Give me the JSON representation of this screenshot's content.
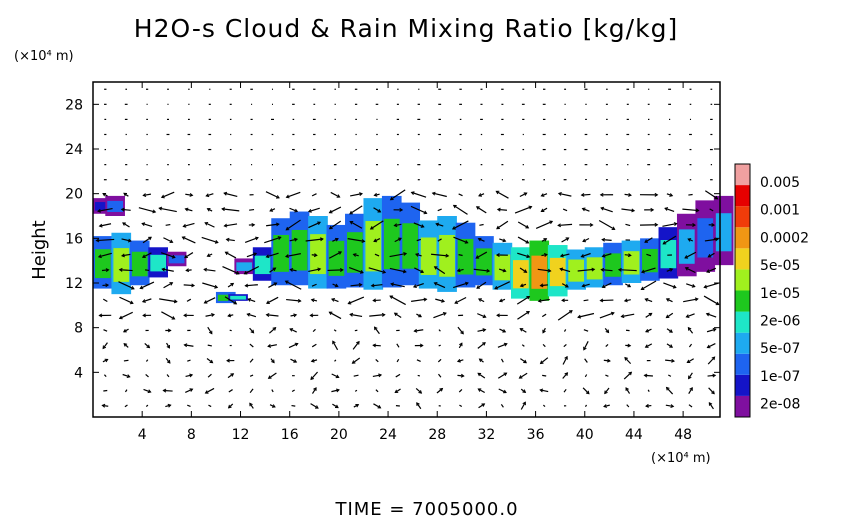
{
  "chart_data": {
    "type": "heatmap",
    "title": "H2O-s Cloud & Rain Mixing Ratio [kg/kg]",
    "ylabel": "Height",
    "y_unit": "(×10⁴ m)",
    "x_unit": "(×10⁴ m)",
    "xlim": [
      0,
      51
    ],
    "ylim": [
      0,
      30
    ],
    "x_ticks": [
      "4",
      "8",
      "12",
      "16",
      "20",
      "24",
      "28",
      "32",
      "36",
      "40",
      "44",
      "48"
    ],
    "y_ticks": [
      "4",
      "8",
      "12",
      "16",
      "20",
      "24",
      "28"
    ],
    "colorbar": {
      "scale": "log",
      "labels": [
        "0.005",
        "0.001",
        "0.0002",
        "5e-05",
        "1e-05",
        "2e-06",
        "5e-07",
        "1e-07",
        "2e-08"
      ],
      "colors": [
        "#7f0f9f",
        "#1414c8",
        "#1e64f0",
        "#1eaaf0",
        "#1ee6c8",
        "#1ec81e",
        "#a0f01e",
        "#f0d21e",
        "#f09614",
        "#f03c0a",
        "#e60000",
        "#f0a0a0"
      ]
    },
    "cloud_regions": [
      {
        "x": 0.0,
        "y_bottom": 18.2,
        "y_top": 19.6,
        "level": 1
      },
      {
        "x": 1.0,
        "y_bottom": 18.0,
        "y_top": 19.8,
        "level": 2
      },
      {
        "x": 0.0,
        "y_bottom": 11.5,
        "y_top": 16.2,
        "level": 5
      },
      {
        "x": 1.5,
        "y_bottom": 11.0,
        "y_top": 16.5,
        "level": 6
      },
      {
        "x": 3.0,
        "y_bottom": 11.8,
        "y_top": 15.8,
        "level": 5
      },
      {
        "x": 4.5,
        "y_bottom": 12.5,
        "y_top": 15.2,
        "level": 4
      },
      {
        "x": 6.0,
        "y_bottom": 13.5,
        "y_top": 14.8,
        "level": 2
      },
      {
        "x": 10.0,
        "y_bottom": 10.2,
        "y_top": 11.2,
        "level": 5
      },
      {
        "x": 11.0,
        "y_bottom": 10.4,
        "y_top": 11.0,
        "level": 4
      },
      {
        "x": 11.5,
        "y_bottom": 12.8,
        "y_top": 14.2,
        "level": 3
      },
      {
        "x": 13.0,
        "y_bottom": 12.2,
        "y_top": 15.2,
        "level": 4
      },
      {
        "x": 14.5,
        "y_bottom": 11.8,
        "y_top": 17.8,
        "level": 5
      },
      {
        "x": 16.0,
        "y_bottom": 11.8,
        "y_top": 18.4,
        "level": 5
      },
      {
        "x": 17.5,
        "y_bottom": 11.5,
        "y_top": 18.0,
        "level": 6
      },
      {
        "x": 19.0,
        "y_bottom": 11.5,
        "y_top": 17.2,
        "level": 5
      },
      {
        "x": 20.5,
        "y_bottom": 11.6,
        "y_top": 18.2,
        "level": 5
      },
      {
        "x": 22.0,
        "y_bottom": 11.4,
        "y_top": 19.6,
        "level": 6
      },
      {
        "x": 23.5,
        "y_bottom": 11.6,
        "y_top": 19.8,
        "level": 5
      },
      {
        "x": 25.0,
        "y_bottom": 11.8,
        "y_top": 19.2,
        "level": 5
      },
      {
        "x": 26.5,
        "y_bottom": 11.5,
        "y_top": 17.6,
        "level": 6
      },
      {
        "x": 28.0,
        "y_bottom": 11.2,
        "y_top": 18.0,
        "level": 6
      },
      {
        "x": 29.5,
        "y_bottom": 11.6,
        "y_top": 17.4,
        "level": 5
      },
      {
        "x": 31.0,
        "y_bottom": 11.8,
        "y_top": 16.2,
        "level": 5
      },
      {
        "x": 32.5,
        "y_bottom": 11.4,
        "y_top": 15.6,
        "level": 6
      },
      {
        "x": 34.0,
        "y_bottom": 10.6,
        "y_top": 15.2,
        "level": 7
      },
      {
        "x": 35.5,
        "y_bottom": 10.4,
        "y_top": 15.8,
        "level": 8
      },
      {
        "x": 37.0,
        "y_bottom": 10.8,
        "y_top": 15.4,
        "level": 7
      },
      {
        "x": 38.5,
        "y_bottom": 11.4,
        "y_top": 15.0,
        "level": 6
      },
      {
        "x": 40.0,
        "y_bottom": 11.6,
        "y_top": 15.2,
        "level": 6
      },
      {
        "x": 41.5,
        "y_bottom": 11.8,
        "y_top": 15.6,
        "level": 5
      },
      {
        "x": 43.0,
        "y_bottom": 12.0,
        "y_top": 15.8,
        "level": 6
      },
      {
        "x": 44.5,
        "y_bottom": 12.2,
        "y_top": 16.0,
        "level": 5
      },
      {
        "x": 46.0,
        "y_bottom": 12.4,
        "y_top": 17.0,
        "level": 4
      },
      {
        "x": 47.5,
        "y_bottom": 12.6,
        "y_top": 18.2,
        "level": 3
      },
      {
        "x": 49.0,
        "y_bottom": 13.0,
        "y_top": 19.4,
        "level": 2
      },
      {
        "x": 50.5,
        "y_bottom": 13.6,
        "y_top": 19.8,
        "level": 3
      }
    ]
  },
  "footer": {
    "time_label": "TIME  =  7005000.0"
  }
}
